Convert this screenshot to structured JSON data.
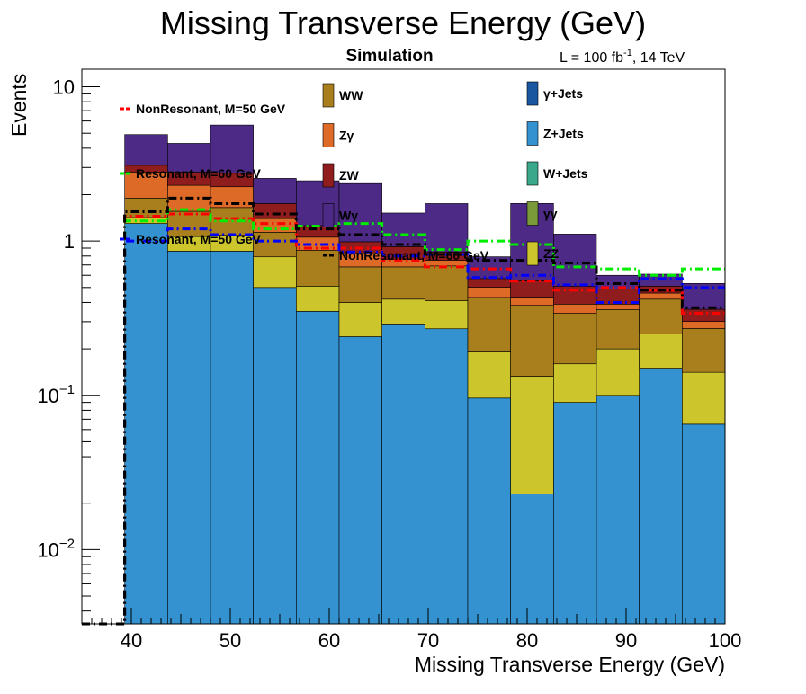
{
  "chart_data": {
    "type": "bar",
    "title": "Missing Transverse Energy (GeV)",
    "subtitle": "Simulation",
    "lumi_prefix": "L = 100 fb",
    "lumi_exp": "-1",
    "lumi_suffix": ", 14 TeV",
    "xlabel": "Missing Transverse Energy (GeV)",
    "ylabel": "Events",
    "xlim": [
      35,
      100
    ],
    "ylim": [
      0.0033,
      13
    ],
    "yscale": "log",
    "x_ticks": [
      40,
      50,
      60,
      70,
      80,
      90,
      100
    ],
    "y_ticks": [
      {
        "value": 10,
        "base": "10",
        "exp": ""
      },
      {
        "value": 1,
        "base": "1",
        "exp": ""
      },
      {
        "value": 0.1,
        "base": "10",
        "exp": "−1"
      },
      {
        "value": 0.01,
        "base": "10",
        "exp": "−2"
      }
    ],
    "bin_edges": [
      35,
      39.33,
      43.67,
      48,
      52.33,
      56.67,
      61,
      65.33,
      69.67,
      74,
      78.33,
      82.67,
      87,
      91.33,
      95.67,
      100
    ],
    "stack": [
      {
        "name": "Z+Jets",
        "color": "#3592d0",
        "values": [
          0,
          1.3,
          0.86,
          0.86,
          0.5,
          0.35,
          0.24,
          0.29,
          0.27,
          0.096,
          0.023,
          0.09,
          0.1,
          0.15,
          0.065
        ]
      },
      {
        "name": "ZZ",
        "color": "#cdc52c",
        "values": [
          0,
          0.12,
          0.21,
          0.23,
          0.29,
          0.16,
          0.16,
          0.13,
          0.14,
          0.095,
          0.11,
          0.07,
          0.1,
          0.1,
          0.076
        ]
      },
      {
        "name": "WW",
        "color": "#a97f1e",
        "values": [
          0,
          0.48,
          0.49,
          0.56,
          0.35,
          0.36,
          0.28,
          0.26,
          0.28,
          0.24,
          0.25,
          0.18,
          0.16,
          0.17,
          0.13
        ]
      },
      {
        "name": "Zγ",
        "color": "#dd6a26",
        "values": [
          0,
          0.9,
          0.74,
          0.6,
          0.26,
          0.19,
          0.16,
          0.08,
          0.06,
          0.07,
          0.05,
          0.05,
          0.03,
          0.04,
          0.03
        ]
      },
      {
        "name": "ZW",
        "color": "#8f1d1d",
        "values": [
          0,
          0.3,
          0.5,
          0.5,
          0.35,
          0.2,
          0.15,
          0.16,
          0.1,
          0.07,
          0.12,
          0.12,
          0.1,
          0.05,
          0.06
        ]
      },
      {
        "name": "Wγ",
        "color": "#4c2a85",
        "values": [
          0,
          1.8,
          1.5,
          2.9,
          0.8,
          1.2,
          1.37,
          0.6,
          0.9,
          0.22,
          1.2,
          0.6,
          0.11,
          0.1,
          0.17
        ]
      }
    ],
    "overlays": [
      {
        "name": "NonResonant, M=50 GeV",
        "color": "#ff0000",
        "values": [
          0.0033,
          1.45,
          1.5,
          1.4,
          1.3,
          0.9,
          0.9,
          0.75,
          0.68,
          0.66,
          0.55,
          0.48,
          0.5,
          0.48,
          0.34
        ]
      },
      {
        "name": "Resonant, M=60 GeV",
        "color": "#00ee00",
        "values": [
          0.0033,
          1.35,
          1.6,
          1.35,
          1.2,
          1.25,
          1.3,
          1.1,
          0.88,
          1.0,
          0.95,
          0.68,
          0.66,
          0.6,
          0.66
        ]
      },
      {
        "name": "Resonant, M=50 GeV",
        "color": "#0000ff",
        "values": [
          0.0033,
          1.0,
          1.2,
          1.1,
          1.0,
          0.95,
          0.85,
          0.8,
          0.82,
          0.58,
          0.6,
          0.52,
          0.4,
          0.57,
          0.5
        ]
      },
      {
        "name": "NonResonant, M=60 GeV",
        "color": "#000000",
        "values": [
          0.0033,
          1.55,
          1.9,
          1.75,
          1.5,
          1.2,
          1.1,
          0.95,
          0.82,
          0.75,
          0.75,
          0.72,
          0.53,
          0.48,
          0.37
        ]
      }
    ],
    "legend_only": [
      {
        "name": "γ+Jets",
        "color": "#1a56a0"
      },
      {
        "name": "W+Jets",
        "color": "#3aa88a"
      },
      {
        "name": "γγ",
        "color": "#7a9a3a"
      }
    ],
    "legend": {
      "left": [
        "NonResonant, M=50 GeV",
        "Resonant, M=60 GeV",
        "Resonant, M=50 GeV"
      ],
      "middle": [
        "WW",
        "Zγ",
        "ZW",
        "Wγ",
        "NonResonant, M=60 GeV"
      ],
      "right": [
        "γ+Jets",
        "Z+Jets",
        "W+Jets",
        "γγ",
        "ZZ"
      ]
    },
    "grid": false
  }
}
